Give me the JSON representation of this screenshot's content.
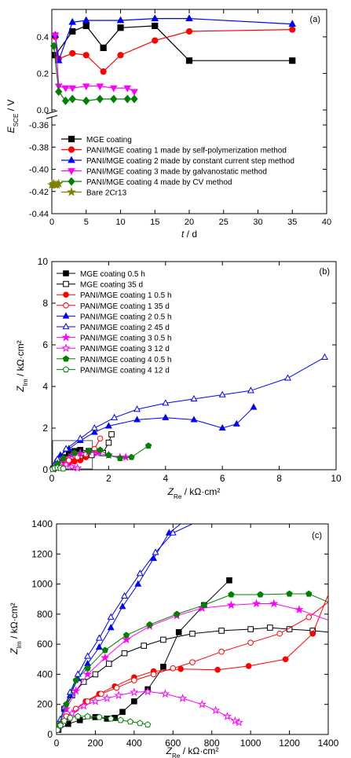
{
  "chart_data": [
    {
      "type": "line",
      "panel_label": "(a)",
      "title": "",
      "xlabel": "t / d",
      "ylabel": "E_SCE / V",
      "xlim": [
        0,
        40
      ],
      "ylim_upper": [
        0.0,
        0.55
      ],
      "ylim_lower": [
        -0.44,
        -0.355
      ],
      "x_ticks": [
        "0",
        "5",
        "10",
        "15",
        "20",
        "25",
        "30",
        "35",
        "40"
      ],
      "y_ticks_upper": [
        "0.0",
        "0.2",
        "0.4"
      ],
      "y_ticks_lower": [
        "-0.36",
        "-0.38",
        "-0.40",
        "-0.42",
        "-0.44"
      ],
      "legend_position": "lower-left",
      "series": [
        {
          "name": "MGE coating",
          "marker": "square",
          "color": "#000000",
          "x": [
            0.5,
            3,
            5,
            7.5,
            10,
            15,
            20,
            35
          ],
          "y": [
            0.3,
            0.43,
            0.46,
            0.34,
            0.45,
            0.46,
            0.27,
            0.27
          ]
        },
        {
          "name": "PANI/MGE coating 1 made by self-polymerization method",
          "marker": "circle",
          "color": "#ff0000",
          "x": [
            0.5,
            1,
            3,
            5,
            7.5,
            10,
            15,
            20,
            35
          ],
          "y": [
            0.4,
            0.28,
            0.31,
            0.3,
            0.21,
            0.3,
            0.38,
            0.43,
            0.44
          ]
        },
        {
          "name": "PANI/MGE coating 2 made by constant current step method",
          "marker": "triangle-up",
          "color": "#0000ff",
          "x": [
            0.5,
            1,
            3,
            5,
            10,
            15,
            20,
            35
          ],
          "y": [
            0.41,
            0.27,
            0.48,
            0.49,
            0.49,
            0.5,
            0.5,
            0.47
          ]
        },
        {
          "name": "PANI/MGE coating 3 made by galvanostatic method",
          "marker": "triangle-down",
          "color": "#ff00ff",
          "x": [
            0.5,
            1,
            2,
            3,
            5,
            7,
            9,
            11,
            12
          ],
          "y": [
            0.41,
            0.13,
            0.12,
            0.12,
            0.13,
            0.13,
            0.12,
            0.12,
            0.1
          ]
        },
        {
          "name": "PANI/MGE coating 4 made by CV method",
          "marker": "diamond",
          "color": "#008000",
          "x": [
            0.3,
            1,
            2,
            3,
            5,
            7,
            9,
            11,
            12
          ],
          "y": [
            0.35,
            0.1,
            0.05,
            0.06,
            0.05,
            0.06,
            0.06,
            0.06,
            0.06
          ]
        },
        {
          "name": "Bare 2Cr13",
          "marker": "star",
          "color": "#808000",
          "x": [
            0,
            0.25,
            0.5,
            0.75,
            1
          ],
          "y": [
            -0.414,
            -0.413,
            -0.414,
            -0.414,
            -0.413
          ]
        }
      ]
    },
    {
      "type": "scatter",
      "panel_label": "(b)",
      "title": "",
      "xlabel": "Z_Re / kΩ·cm²",
      "ylabel": "Z_Im / kΩ·cm²",
      "xlim": [
        0,
        10
      ],
      "ylim": [
        0,
        10
      ],
      "x_ticks": [
        "0",
        "2",
        "4",
        "6",
        "8",
        "10"
      ],
      "y_ticks": [
        "0",
        "2",
        "4",
        "6",
        "8",
        "10"
      ],
      "legend_position": "top-left",
      "inset_box_x": [
        0,
        1.4
      ],
      "inset_box_y": [
        0,
        1.4
      ],
      "series": [
        {
          "name": "MGE coating 0.5 h",
          "marker": "square",
          "filled": true,
          "color": "#000000",
          "x": [
            0.05,
            0.2,
            0.4,
            0.6,
            0.8,
            1.0,
            1.3
          ],
          "y": [
            0.05,
            0.35,
            0.6,
            0.8,
            0.9,
            0.95,
            0.9
          ]
        },
        {
          "name": "MGE coating 35 d",
          "marker": "square",
          "filled": false,
          "color": "#000000",
          "x": [
            0.05,
            0.3,
            0.6,
            1.0,
            1.4,
            1.8,
            2.0,
            2.1
          ],
          "y": [
            0.05,
            0.2,
            0.4,
            0.55,
            0.7,
            0.8,
            1.3,
            1.7
          ]
        },
        {
          "name": "PANI/MGE coating 1 0.5 h",
          "marker": "circle",
          "filled": true,
          "color": "#ff0000",
          "x": [
            0.05,
            0.2,
            0.4,
            0.6,
            0.8,
            1.0,
            1.2
          ],
          "y": [
            0.05,
            0.2,
            0.3,
            0.35,
            0.4,
            0.45,
            0.6
          ]
        },
        {
          "name": "PANI/MGE coating 1 35 d",
          "marker": "circle",
          "filled": false,
          "color": "#ff0000",
          "x": [
            0.05,
            0.3,
            0.6,
            0.9,
            1.2,
            1.5,
            1.7
          ],
          "y": [
            0.05,
            0.25,
            0.45,
            0.6,
            0.75,
            1.0,
            1.5
          ]
        },
        {
          "name": "PANI/MGE coating 2 0.5 h",
          "marker": "triangle-up",
          "filled": true,
          "color": "#0000ff",
          "x": [
            0.05,
            0.15,
            0.3,
            0.6,
            1.0,
            1.5,
            2.0,
            3.0,
            4.0,
            5.0,
            6.0,
            6.5,
            7.1
          ],
          "y": [
            0.1,
            0.4,
            0.7,
            1.0,
            1.4,
            1.8,
            2.1,
            2.4,
            2.5,
            2.4,
            2.0,
            2.2,
            3.0
          ]
        },
        {
          "name": "PANI/MGE coating 2 45 d",
          "marker": "triangle-up",
          "filled": false,
          "color": "#0000ff",
          "x": [
            0.05,
            0.2,
            0.5,
            1.0,
            1.5,
            2.2,
            3.0,
            4.0,
            5.0,
            6.0,
            7.0,
            8.3,
            9.6
          ],
          "y": [
            0.1,
            0.5,
            1.0,
            1.5,
            2.0,
            2.5,
            2.9,
            3.2,
            3.4,
            3.6,
            3.8,
            4.4,
            5.4
          ]
        },
        {
          "name": "PANI/MGE coating 3 0.5 h",
          "marker": "star",
          "filled": true,
          "color": "#ff00ff",
          "x": [
            0.05,
            0.2,
            0.4,
            0.7,
            1.0,
            1.3,
            1.6,
            2.0,
            2.4,
            2.6
          ],
          "y": [
            0.05,
            0.3,
            0.5,
            0.7,
            0.8,
            0.85,
            0.8,
            0.7,
            0.6,
            0.6
          ]
        },
        {
          "name": "PANI/MGE coating 3 12 d",
          "marker": "star",
          "filled": false,
          "color": "#ff00ff",
          "x": [
            0.05,
            0.15,
            0.3,
            0.5,
            0.7,
            0.9
          ],
          "y": [
            0.03,
            0.1,
            0.2,
            0.25,
            0.15,
            0.08
          ]
        },
        {
          "name": "PANI/MGE coating 4 0.5 h",
          "marker": "pentagon",
          "filled": true,
          "color": "#008000",
          "x": [
            0.05,
            0.2,
            0.4,
            0.8,
            1.3,
            1.7,
            2.0,
            2.4,
            2.8,
            3.4
          ],
          "y": [
            0.05,
            0.3,
            0.55,
            0.8,
            0.9,
            0.95,
            0.7,
            0.55,
            0.6,
            1.15
          ]
        },
        {
          "name": "PANI/MGE coating 4 12 d",
          "marker": "pentagon",
          "filled": false,
          "color": "#008000",
          "x": [
            0.03,
            0.1,
            0.2,
            0.3,
            0.4
          ],
          "y": [
            0.03,
            0.08,
            0.1,
            0.08,
            0.05
          ]
        }
      ]
    },
    {
      "type": "scatter",
      "panel_label": "(c)",
      "title": "",
      "xlabel": "Z_Re / kΩ·cm²",
      "ylabel": "Z_Im / kΩ·cm²",
      "xlim": [
        0,
        1400
      ],
      "ylim": [
        0,
        1400
      ],
      "x_ticks": [
        "0",
        "200",
        "400",
        "600",
        "800",
        "1000",
        "1200",
        "1400"
      ],
      "y_ticks": [
        "0",
        "200",
        "400",
        "600",
        "800",
        "1000",
        "1200",
        "1400"
      ],
      "series": [
        {
          "name": "MGE coating 0.5 h",
          "marker": "square",
          "filled": true,
          "color": "#000000",
          "x": [
            10,
            60,
            120,
            200,
            260,
            300,
            340,
            400,
            470,
            550,
            630,
            760,
            890
          ],
          "y": [
            30,
            70,
            95,
            115,
            105,
            110,
            150,
            220,
            300,
            450,
            680,
            860,
            1025
          ]
        },
        {
          "name": "MGE coating 35 d",
          "marker": "square",
          "filled": false,
          "color": "#000000",
          "x": [
            10,
            40,
            80,
            140,
            200,
            270,
            350,
            450,
            550,
            700,
            850,
            1000,
            1100,
            1200,
            1320,
            1400
          ],
          "y": [
            60,
            170,
            260,
            350,
            400,
            470,
            540,
            590,
            630,
            670,
            690,
            700,
            710,
            700,
            690,
            680
          ]
        },
        {
          "name": "PANI/MGE coating 1 0.5 h",
          "marker": "circle",
          "filled": true,
          "color": "#ff0000",
          "x": [
            10,
            50,
            100,
            150,
            220,
            300,
            400,
            500,
            640,
            830,
            990,
            1180,
            1320,
            1400
          ],
          "y": [
            60,
            120,
            170,
            220,
            270,
            320,
            380,
            420,
            435,
            430,
            455,
            500,
            670,
            930
          ]
        },
        {
          "name": "PANI/MGE coating 1 35 d",
          "marker": "circle",
          "filled": false,
          "color": "#ff0000",
          "x": [
            10,
            50,
            100,
            160,
            230,
            310,
            400,
            500,
            600,
            700,
            850,
            1000,
            1150,
            1300,
            1400
          ],
          "y": [
            60,
            120,
            170,
            220,
            270,
            310,
            360,
            400,
            440,
            480,
            550,
            610,
            670,
            780,
            880
          ]
        },
        {
          "name": "PANI/MGE coating 2 0.5 h",
          "marker": "triangle-up",
          "filled": true,
          "color": "#0000ff",
          "x": [
            5,
            20,
            40,
            70,
            110,
            160,
            220,
            280,
            340,
            420,
            500,
            580,
            640
          ],
          "y": [
            40,
            100,
            170,
            260,
            370,
            470,
            580,
            710,
            850,
            1000,
            1170,
            1340,
            1400
          ]
        },
        {
          "name": "PANI/MGE coating 2 45 d",
          "marker": "triangle-up",
          "filled": false,
          "color": "#0000ff",
          "x": [
            5,
            20,
            40,
            70,
            110,
            160,
            220,
            280,
            350,
            430,
            510,
            600,
            700
          ],
          "y": [
            40,
            100,
            180,
            280,
            400,
            520,
            640,
            780,
            920,
            1070,
            1210,
            1340,
            1400
          ]
        },
        {
          "name": "PANI/MGE coating 3 0.5 h",
          "marker": "star",
          "filled": true,
          "color": "#ff00ff",
          "x": [
            10,
            50,
            100,
            160,
            250,
            360,
            480,
            620,
            750,
            900,
            1030,
            1120,
            1250,
            1400
          ],
          "y": [
            60,
            170,
            290,
            400,
            510,
            630,
            720,
            790,
            840,
            860,
            870,
            870,
            830,
            760
          ]
        },
        {
          "name": "PANI/MGE coating 3 12 d",
          "marker": "star",
          "filled": false,
          "color": "#ff00ff",
          "x": [
            10,
            40,
            80,
            140,
            200,
            260,
            320,
            400,
            470,
            560,
            650,
            750,
            820,
            880,
            920,
            940
          ],
          "y": [
            40,
            90,
            140,
            190,
            220,
            240,
            260,
            280,
            285,
            270,
            240,
            200,
            160,
            120,
            90,
            80
          ]
        },
        {
          "name": "PANI/MGE coating 4 0.5 h",
          "marker": "pentagon",
          "filled": true,
          "color": "#008000",
          "x": [
            10,
            50,
            100,
            160,
            250,
            360,
            480,
            620,
            760,
            900,
            1050,
            1200,
            1300,
            1400
          ],
          "y": [
            60,
            200,
            360,
            440,
            560,
            660,
            730,
            800,
            860,
            930,
            930,
            935,
            935,
            880
          ]
        },
        {
          "name": "PANI/MGE coating 4 12 d",
          "marker": "pentagon",
          "filled": false,
          "color": "#008000",
          "x": [
            5,
            20,
            40,
            70,
            110,
            160,
            220,
            280,
            330,
            380,
            430,
            470
          ],
          "y": [
            30,
            60,
            90,
            110,
            120,
            120,
            115,
            105,
            95,
            85,
            75,
            65
          ]
        }
      ]
    }
  ]
}
